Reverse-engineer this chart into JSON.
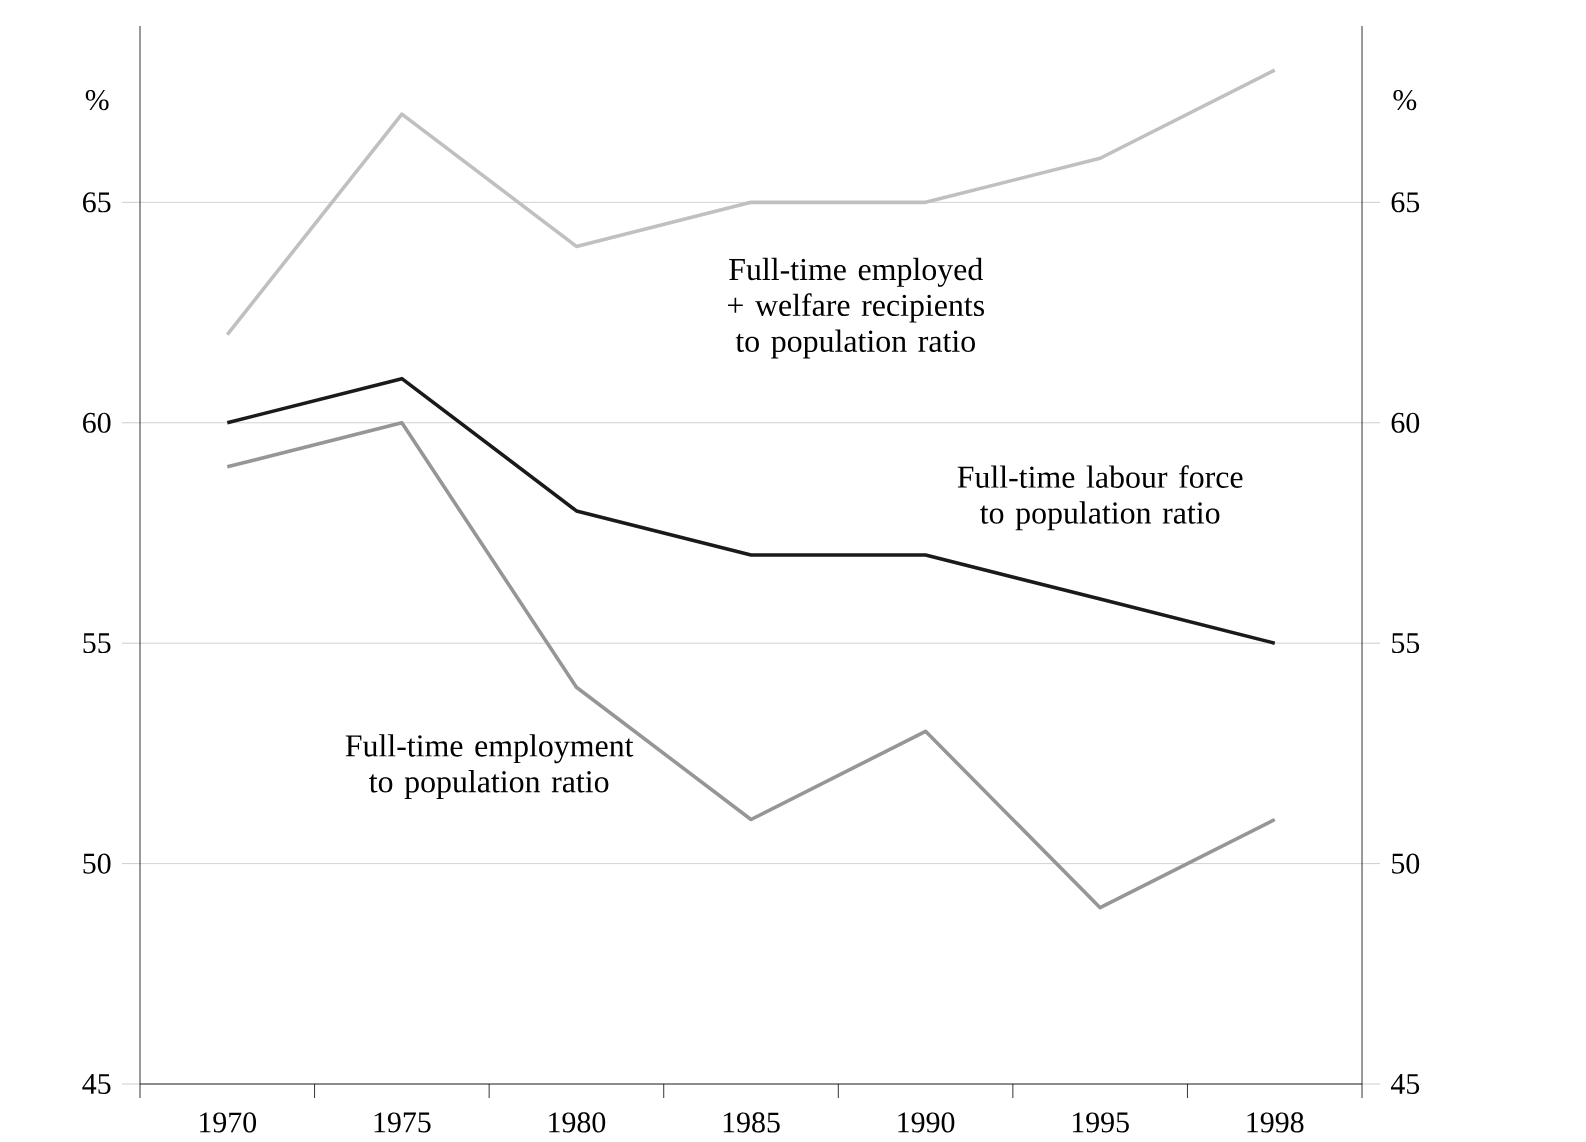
{
  "chart_data": {
    "type": "line",
    "ylabel": "%",
    "y2label": "%",
    "categories": [
      "1970",
      "1975",
      "1980",
      "1985",
      "1990",
      "1995",
      "1998"
    ],
    "series": [
      {
        "name": "Full-time employed + welfare recipients to population ratio",
        "color": "#c0c0c0",
        "values": [
          62,
          67,
          64,
          65,
          65,
          66,
          68
        ]
      },
      {
        "name": "Full-time labour force to population ratio",
        "color": "#1a1a1a",
        "values": [
          60,
          61,
          58,
          57,
          57,
          56,
          55
        ]
      },
      {
        "name": "Full-time employment to population ratio",
        "color": "#969696",
        "values": [
          59,
          60,
          54,
          51,
          53,
          49,
          51
        ]
      }
    ],
    "ylim": [
      45,
      69
    ],
    "yticks": [
      45,
      50,
      55,
      60,
      65
    ],
    "y2lim": [
      45,
      69
    ],
    "y2ticks": [
      45,
      50,
      55,
      60,
      65
    ],
    "grid": "y",
    "legend": false,
    "marker": "none",
    "line_style": "solid"
  }
}
